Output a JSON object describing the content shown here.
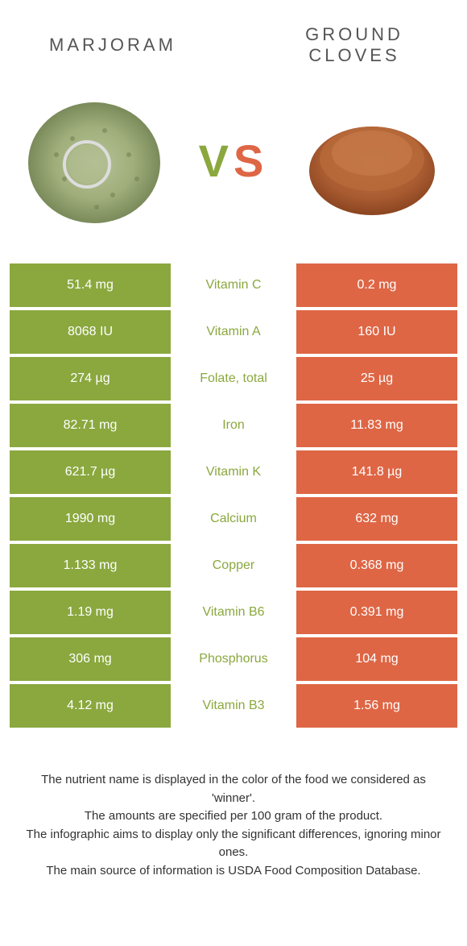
{
  "header": {
    "left_title": "Marjoram",
    "right_title": "Ground cloves",
    "vs_v": "V",
    "vs_s": "S"
  },
  "colors": {
    "green": "#8aa83e",
    "orange": "#de6645"
  },
  "rows": [
    {
      "left": "51.4 mg",
      "label": "Vitamin C",
      "right": "0.2 mg",
      "label_color": "#8aa83e"
    },
    {
      "left": "8068 IU",
      "label": "Vitamin A",
      "right": "160 IU",
      "label_color": "#8aa83e"
    },
    {
      "left": "274 µg",
      "label": "Folate, total",
      "right": "25 µg",
      "label_color": "#8aa83e"
    },
    {
      "left": "82.71 mg",
      "label": "Iron",
      "right": "11.83 mg",
      "label_color": "#8aa83e"
    },
    {
      "left": "621.7 µg",
      "label": "Vitamin K",
      "right": "141.8 µg",
      "label_color": "#8aa83e"
    },
    {
      "left": "1990 mg",
      "label": "Calcium",
      "right": "632 mg",
      "label_color": "#8aa83e"
    },
    {
      "left": "1.133 mg",
      "label": "Copper",
      "right": "0.368 mg",
      "label_color": "#8aa83e"
    },
    {
      "left": "1.19 mg",
      "label": "Vitamin B6",
      "right": "0.391 mg",
      "label_color": "#8aa83e"
    },
    {
      "left": "306 mg",
      "label": "Phosphorus",
      "right": "104 mg",
      "label_color": "#8aa83e"
    },
    {
      "left": "4.12 mg",
      "label": "Vitamin B3",
      "right": "1.56 mg",
      "label_color": "#8aa83e"
    }
  ],
  "footer": {
    "line1": "The nutrient name is displayed in the color of the food we considered as 'winner'.",
    "line2": "The amounts are specified per 100 gram of the product.",
    "line3": "The infographic aims to display only the significant differences, ignoring minor ones.",
    "line4": "The main source of information is USDA Food Composition Database."
  }
}
